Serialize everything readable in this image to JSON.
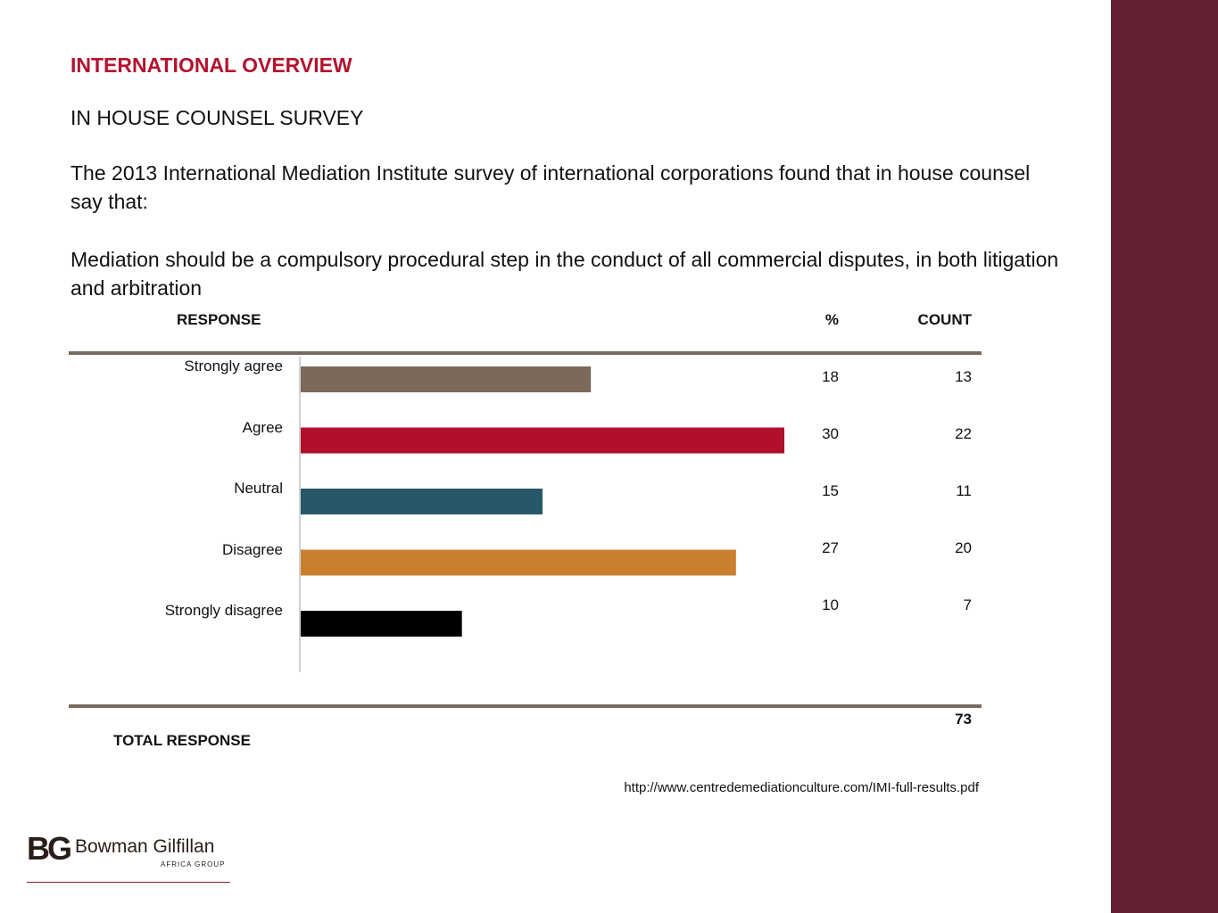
{
  "slide": {
    "kicker": "INTERNATIONAL OVERVIEW",
    "subtitle": "IN HOUSE COUNSEL SURVEY",
    "intro": "The 2013 International Mediation Institute survey of international corporations found that in house counsel say that:",
    "statement": "Mediation should be a compulsory procedural step in the conduct of all commercial disputes, in both litigation and arbitration",
    "source_url": "http://www.centredemediationculture.com/IMI-full-results.pdf",
    "accent_color": "#b3132f",
    "side_band_color": "#622232"
  },
  "table": {
    "header_response": "RESPONSE",
    "header_pct": "%",
    "header_count": "COUNT",
    "total_label": "TOTAL RESPONSE",
    "total_value": "73"
  },
  "chart_data": {
    "type": "bar",
    "orientation": "horizontal",
    "categories": [
      "Strongly agree",
      "Agree",
      "Neutral",
      "Disagree",
      "Strongly disagree"
    ],
    "values": [
      18,
      30,
      15,
      27,
      10
    ],
    "counts": [
      13,
      22,
      11,
      20,
      7
    ],
    "colors": [
      "#7b6a5a",
      "#b0102c",
      "#285868",
      "#c8802e",
      "#000000"
    ],
    "xlim": [
      0,
      30
    ],
    "grid": false
  },
  "logo": {
    "monogram": "BG",
    "name": "Bowman Gilfillan",
    "sub": "AFRICA GROUP"
  }
}
